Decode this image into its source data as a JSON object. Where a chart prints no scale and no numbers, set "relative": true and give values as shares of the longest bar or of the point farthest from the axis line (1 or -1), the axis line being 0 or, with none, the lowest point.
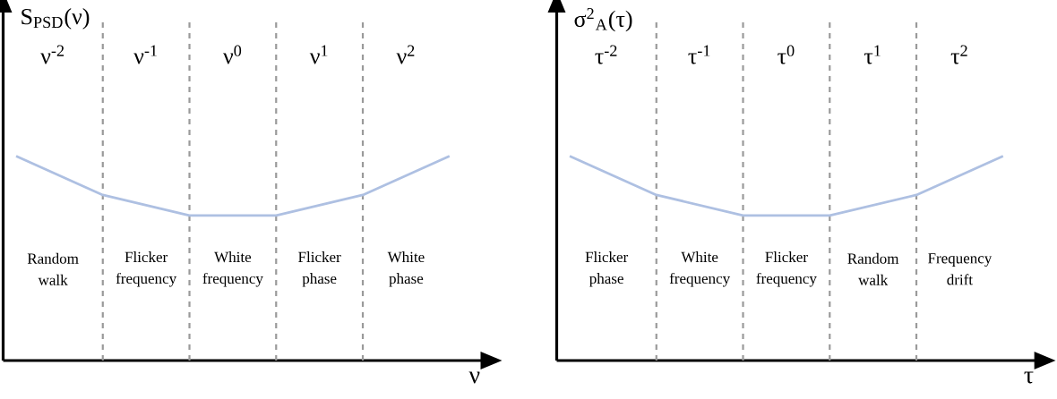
{
  "chart_data": [
    {
      "type": "line",
      "relative": true,
      "grid": "x",
      "categories": [
        null,
        null,
        null,
        null,
        null,
        null
      ],
      "ylabel": "S$_{PSD}$(ν)",
      "xlabel": "ν",
      "series": [
        {
          "color": "#aec0e2",
          "values": [
            1,
            0.81,
            0.71,
            0.71,
            0.81,
            1
          ]
        }
      ],
      "annotations": [
        "ν$^{-2}$",
        "ν$^{-1}$",
        "ν$^{0}$",
        "ν$^{1}$",
        "ν$^{2}$",
        "Random walk",
        "Flicker frequency",
        "White frequency",
        "Flicker phase",
        "White phase"
      ]
    },
    {
      "type": "line",
      "relative": true,
      "grid": "x",
      "categories": [
        null,
        null,
        null,
        null,
        null,
        null
      ],
      "ylabel": "σ$^{2}$$_{A}$(τ)",
      "xlabel": "τ",
      "series": [
        {
          "color": "#aec0e2",
          "values": [
            1,
            0.81,
            0.71,
            0.71,
            0.81,
            1
          ]
        }
      ],
      "annotations": [
        "τ$^{-2}$",
        "τ$^{-1}$",
        "τ$^{0}$",
        "τ$^{1}$",
        "τ$^{2}$",
        "Flicker phase",
        "White frequency",
        "Flicker frequency",
        "Random walk",
        "Frequency drift"
      ]
    }
  ]
}
